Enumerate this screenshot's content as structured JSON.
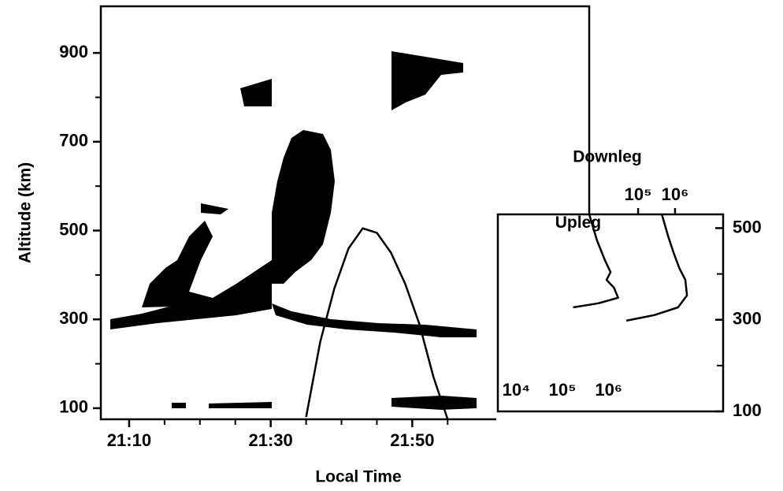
{
  "chart_data": [
    {
      "type": "line",
      "xlabel": "Local Time",
      "ylabel": "Altitude (km)",
      "xlim": [
        "21:06",
        "22:15"
      ],
      "xticks": [
        "21:10",
        "21:30",
        "21:50"
      ],
      "xticks_minor": [
        "21:15",
        "21:20",
        "21:25",
        "21:35",
        "21:40",
        "21:45",
        "21:55"
      ],
      "ylim": [
        75,
        1005
      ],
      "yticks": [
        100,
        300,
        500,
        700,
        900
      ],
      "yticks_minor": [
        200,
        400,
        600,
        800
      ],
      "series": [
        {
          "color": "#000000",
          "x": [
            "21:35",
            "21:37",
            "21:39",
            "21:41",
            "21:43",
            "21:45",
            "21:47",
            "21:49",
            "21:51",
            "21:53",
            "21:55"
          ],
          "values": [
            80,
            250,
            370,
            460,
            505,
            495,
            450,
            380,
            290,
            170,
            75
          ]
        }
      ]
    },
    {
      "type": "line",
      "xlog": true,
      "xlim": [
        4000,
        300000000
      ],
      "xticks": [
        {
          "value": 10000,
          "label": "10⁴"
        },
        {
          "value": 100000,
          "label": "10⁵"
        },
        {
          "value": 1000000,
          "label": "10⁶"
        }
      ],
      "x2lim": [
        16,
        20000000
      ],
      "x2ticks": [
        {
          "value": 100000,
          "label": "10⁵"
        },
        {
          "value": 1000000,
          "label": "10⁶"
        }
      ],
      "ylim": [
        100,
        530
      ],
      "yticks": [
        100,
        300,
        500
      ],
      "yticks_minor": [
        200,
        400
      ],
      "series": [
        {
          "name": "Upleg",
          "color": "#000000",
          "x": [
            380000,
            560000,
            830000,
            1100000,
            900000,
            1300000,
            1600000,
            600000,
            170000
          ],
          "values": [
            530,
            473,
            430,
            404,
            387,
            370,
            348,
            336,
            327
          ]
        },
        {
          "name": "Downleg",
          "color": "#000000",
          "axis": "x2",
          "x": [
            440000,
            650000,
            910000,
            1300000,
            1900000,
            2100000,
            1200000,
            270000,
            48000
          ],
          "values": [
            530,
            482,
            447,
            413,
            387,
            353,
            327,
            310,
            298
          ]
        }
      ]
    }
  ]
}
